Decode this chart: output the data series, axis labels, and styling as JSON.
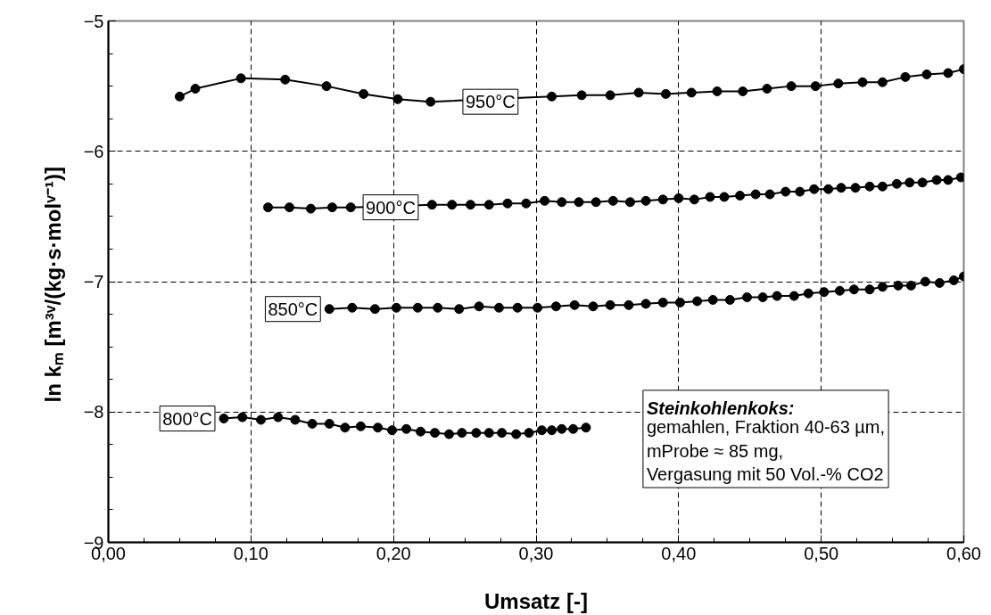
{
  "chart_data": {
    "type": "line",
    "xlabel": "Umsatz [-]",
    "ylabel": "ln kₘ  [m³ᵛ/(kg·s·molᵛ⁻¹)]",
    "xlim": [
      0,
      0.6
    ],
    "ylim": [
      -9,
      -5
    ],
    "xticks": [
      {
        "value": 0,
        "label": "0,00"
      },
      {
        "value": 0.1,
        "label": "0,10"
      },
      {
        "value": 0.2,
        "label": "0,20"
      },
      {
        "value": 0.3,
        "label": "0,30"
      },
      {
        "value": 0.4,
        "label": "0,40"
      },
      {
        "value": 0.5,
        "label": "0,50"
      },
      {
        "value": 0.6,
        "label": "0,60"
      }
    ],
    "yticks": [
      -9,
      -8,
      -7,
      -6,
      -5
    ],
    "grid": true,
    "marker": "circle",
    "line_style": "solid",
    "series": [
      {
        "color": "#000000",
        "x": [
          0.05,
          0.061,
          0.093,
          0.124,
          0.153,
          0.179,
          0.203,
          0.226,
          0.311,
          0.332,
          0.352,
          0.372,
          0.391,
          0.409,
          0.427,
          0.445,
          0.462,
          0.479,
          0.496,
          0.512,
          0.529,
          0.543,
          0.559,
          0.574,
          0.589,
          0.6
        ],
        "values": [
          -5.58,
          -5.52,
          -5.44,
          -5.45,
          -5.5,
          -5.56,
          -5.6,
          -5.62,
          -5.58,
          -5.57,
          -5.57,
          -5.55,
          -5.56,
          -5.55,
          -5.54,
          -5.54,
          -5.52,
          -5.5,
          -5.5,
          -5.48,
          -5.47,
          -5.47,
          -5.43,
          -5.41,
          -5.4,
          -5.37
        ]
      },
      {
        "color": "#000000",
        "x": [
          0.112,
          0.127,
          0.142,
          0.157,
          0.17,
          0.227,
          0.241,
          0.254,
          0.267,
          0.28,
          0.293,
          0.306,
          0.318,
          0.33,
          0.342,
          0.354,
          0.366,
          0.377,
          0.389,
          0.4,
          0.411,
          0.422,
          0.432,
          0.443,
          0.454,
          0.464,
          0.475,
          0.485,
          0.495,
          0.505,
          0.514,
          0.524,
          0.534,
          0.543,
          0.553,
          0.562,
          0.571,
          0.581,
          0.589,
          0.598
        ],
        "values": [
          -6.43,
          -6.43,
          -6.44,
          -6.43,
          -6.43,
          -6.41,
          -6.41,
          -6.41,
          -6.41,
          -6.4,
          -6.4,
          -6.38,
          -6.39,
          -6.39,
          -6.39,
          -6.38,
          -6.39,
          -6.38,
          -6.37,
          -6.36,
          -6.37,
          -6.35,
          -6.35,
          -6.34,
          -6.33,
          -6.33,
          -6.31,
          -6.31,
          -6.29,
          -6.29,
          -6.28,
          -6.28,
          -6.27,
          -6.27,
          -6.25,
          -6.24,
          -6.24,
          -6.22,
          -6.22,
          -6.2
        ]
      },
      {
        "color": "#000000",
        "x": [
          0.155,
          0.171,
          0.187,
          0.202,
          0.217,
          0.231,
          0.246,
          0.26,
          0.274,
          0.287,
          0.301,
          0.314,
          0.327,
          0.34,
          0.352,
          0.365,
          0.377,
          0.389,
          0.401,
          0.413,
          0.424,
          0.436,
          0.448,
          0.459,
          0.469,
          0.481,
          0.491,
          0.502,
          0.513,
          0.523,
          0.534,
          0.543,
          0.554,
          0.563,
          0.573,
          0.583,
          0.593,
          0.6
        ],
        "values": [
          -7.21,
          -7.2,
          -7.21,
          -7.2,
          -7.2,
          -7.2,
          -7.21,
          -7.19,
          -7.2,
          -7.2,
          -7.2,
          -7.19,
          -7.18,
          -7.19,
          -7.18,
          -7.18,
          -7.17,
          -7.16,
          -7.16,
          -7.15,
          -7.14,
          -7.14,
          -7.12,
          -7.12,
          -7.11,
          -7.11,
          -7.09,
          -7.08,
          -7.07,
          -7.06,
          -7.06,
          -7.04,
          -7.03,
          -7.03,
          -7.0,
          -7.01,
          -6.99,
          -6.96
        ]
      },
      {
        "color": "#000000",
        "x": [
          0.081,
          0.094,
          0.107,
          0.119,
          0.131,
          0.143,
          0.155,
          0.166,
          0.177,
          0.189,
          0.199,
          0.209,
          0.219,
          0.229,
          0.239,
          0.248,
          0.258,
          0.267,
          0.276,
          0.286,
          0.295,
          0.304,
          0.311,
          0.318,
          0.326,
          0.335
        ],
        "values": [
          -8.05,
          -8.04,
          -8.06,
          -8.04,
          -8.06,
          -8.09,
          -8.09,
          -8.12,
          -8.11,
          -8.12,
          -8.14,
          -8.13,
          -8.15,
          -8.16,
          -8.17,
          -8.16,
          -8.16,
          -8.16,
          -8.16,
          -8.17,
          -8.16,
          -8.14,
          -8.14,
          -8.13,
          -8.13,
          -8.12
        ]
      }
    ],
    "annotations": [
      {
        "text": "950°C",
        "x": 0.268,
        "y": -5.62
      },
      {
        "text": "900°C",
        "x": 0.198,
        "y": -6.43
      },
      {
        "text": "850°C",
        "x": 0.155,
        "y": -7.21
      },
      {
        "text": "800°C",
        "x": 0.081,
        "y": -8.05
      },
      "Steinkohlenkoks:",
      "gemahlen, Fraktion 40-63 µm,\nmProbe ≈ 85 mg,\nVergasung mit 50 Vol.-% CO2"
    ]
  }
}
